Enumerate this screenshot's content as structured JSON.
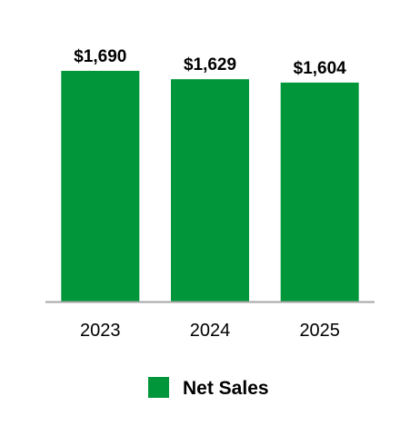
{
  "chart_data": {
    "type": "bar",
    "categories": [
      "2023",
      "2024",
      "2025"
    ],
    "series": [
      {
        "name": "Net Sales",
        "values": [
          1690,
          1629,
          1604
        ],
        "labels": [
          "$1,690",
          "$1,629",
          "$1,604"
        ]
      }
    ],
    "title": "",
    "xlabel": "",
    "ylabel": "",
    "ylim": [
      0,
      1690
    ],
    "grid": false,
    "legend_position": "bottom",
    "colors": {
      "bar": "#009639",
      "axis": "#a6a6a6"
    }
  }
}
